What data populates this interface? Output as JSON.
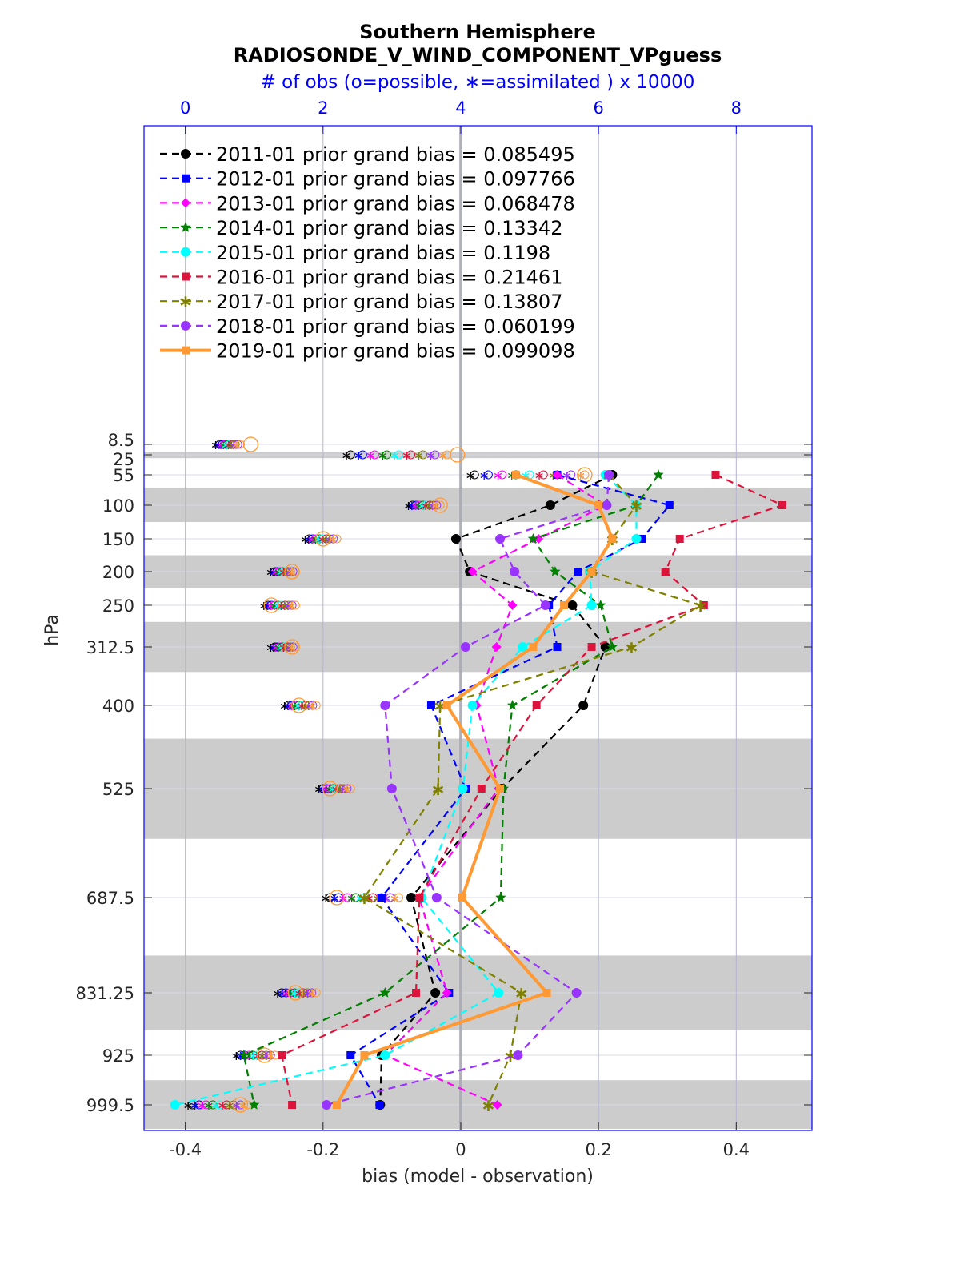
{
  "chart_data": {
    "type": "line",
    "title": "Southern Hemisphere",
    "subtitle": "RADIOSONDE_V_WIND_COMPONENT_VPguess",
    "top_axis_label": "# of obs (o=possible, ∗=assimilated ) x 10000",
    "xlabel": "bias (model - observation)",
    "ylabel": "hPa",
    "xlim": [
      -0.46,
      0.51
    ],
    "x_ticks": [
      "-0.4",
      "-0.2",
      "0",
      "0.2",
      "0.4"
    ],
    "x_tick_values": [
      -0.4,
      -0.2,
      0,
      0.2,
      0.4
    ],
    "top_xlim": [
      -0.6,
      9.1
    ],
    "top_ticks": [
      "0",
      "2",
      "4",
      "6",
      "8"
    ],
    "top_tick_values": [
      0,
      2,
      4,
      6,
      8
    ],
    "y_reversed": true,
    "levels": [
      8.5,
      25,
      55,
      100,
      150,
      200,
      250,
      312.5,
      400,
      525,
      687.5,
      831.25,
      925,
      999.5
    ],
    "level_labels": [
      "8.5",
      "25",
      "55",
      "100",
      "150",
      "200",
      "250",
      "312.5",
      "400",
      "525",
      "687.5",
      "831.25",
      "925",
      "999.5"
    ],
    "shaded_bands_hPa": [
      [
        20,
        30
      ],
      [
        75,
        125
      ],
      [
        175,
        225
      ],
      [
        275,
        350
      ],
      [
        450,
        600
      ],
      [
        775,
        887.5
      ],
      [
        962.5,
        1025
      ]
    ],
    "legend_location": "top-left",
    "series": [
      {
        "name": "2011-01 prior grand bias = 0.085495",
        "color": "#000000",
        "marker": "circle",
        "style": "dashed",
        "levels": [
          55,
          100,
          150,
          200,
          250,
          312.5,
          400,
          525,
          687.5,
          831.25,
          925,
          999.5
        ],
        "values": [
          0.22,
          0.13,
          -0.007,
          0.013,
          0.162,
          0.21,
          0.178,
          0.06,
          -0.072,
          -0.037,
          -0.115,
          -0.117
        ]
      },
      {
        "name": "2012-01 prior grand bias = 0.097766",
        "color": "#0000ff",
        "marker": "square",
        "style": "dashed",
        "levels": [
          55,
          100,
          150,
          200,
          250,
          312.5,
          400,
          525,
          687.5,
          831.25,
          925,
          999.5
        ],
        "values": [
          0.14,
          0.303,
          0.263,
          0.17,
          0.128,
          0.14,
          -0.043,
          0.007,
          -0.115,
          -0.017,
          -0.16,
          -0.118
        ]
      },
      {
        "name": "2013-01 prior grand bias = 0.068478",
        "color": "#ff00ff",
        "marker": "diamond",
        "style": "dashed",
        "levels": [
          55,
          100,
          150,
          200,
          250,
          312.5,
          400,
          525,
          687.5,
          831.25,
          925,
          999.5
        ],
        "values": [
          0.14,
          0.21,
          0.113,
          0.017,
          0.075,
          0.052,
          0.023,
          0.055,
          -0.06,
          -0.02,
          -0.11,
          0.053
        ]
      },
      {
        "name": "2014-01 prior grand bias = 0.13342",
        "color": "#008000",
        "marker": "star",
        "style": "dashed",
        "levels": [
          55,
          100,
          150,
          200,
          250,
          312.5,
          400,
          525,
          687.5,
          831.25,
          925,
          999.5
        ],
        "values": [
          0.287,
          0.255,
          0.105,
          0.137,
          0.203,
          0.22,
          0.075,
          0.062,
          0.058,
          -0.11,
          -0.315,
          -0.3
        ]
      },
      {
        "name": "2015-01 prior grand bias = 0.1198",
        "color": "#00ffff",
        "marker": "circle",
        "style": "dashed",
        "levels": [
          55,
          100,
          150,
          200,
          250,
          312.5,
          400,
          525,
          687.5,
          831.25,
          925,
          999.5
        ],
        "values": [
          0.21,
          0.255,
          0.255,
          0.187,
          0.19,
          0.09,
          0.017,
          0.003,
          -0.057,
          0.055,
          -0.11,
          -0.415
        ]
      },
      {
        "name": "2016-01 prior grand bias = 0.21461",
        "color": "#dc143c",
        "marker": "square",
        "style": "dashed",
        "levels": [
          55,
          100,
          150,
          200,
          250,
          312.5,
          400,
          525,
          687.5,
          831.25,
          925,
          999.5
        ],
        "values": [
          0.37,
          0.467,
          0.318,
          0.297,
          0.353,
          0.19,
          0.11,
          0.03,
          -0.06,
          -0.065,
          -0.26,
          -0.245
        ]
      },
      {
        "name": "2017-01 prior grand bias = 0.13807",
        "color": "#808000",
        "marker": "asterisk",
        "style": "dashed",
        "levels": [
          55,
          100,
          150,
          200,
          250,
          312.5,
          400,
          525,
          687.5,
          831.25,
          925,
          999.5
        ],
        "values": [
          0.215,
          0.255,
          0.22,
          0.19,
          0.348,
          0.248,
          -0.03,
          -0.033,
          -0.14,
          0.088,
          0.072,
          0.04
        ]
      },
      {
        "name": "2018-01 prior grand bias = 0.060199",
        "color": "#9933ff",
        "marker": "circle",
        "style": "dashed",
        "levels": [
          55,
          100,
          150,
          200,
          250,
          312.5,
          400,
          525,
          687.5,
          831.25,
          925,
          999.5
        ],
        "values": [
          0.215,
          0.212,
          0.057,
          0.078,
          0.123,
          0.007,
          -0.11,
          -0.1,
          -0.035,
          0.168,
          0.083,
          -0.195
        ]
      },
      {
        "name": "2019-01 prior grand bias = 0.099098",
        "color": "#ff9933",
        "marker": "square",
        "style": "solid",
        "levels": [
          55,
          100,
          150,
          200,
          250,
          312.5,
          400,
          525,
          687.5,
          831.25,
          925,
          999.5
        ],
        "values": [
          0.08,
          0.2,
          0.22,
          0.19,
          0.15,
          0.105,
          -0.02,
          0.057,
          0.002,
          0.125,
          -0.14,
          -0.18
        ]
      }
    ],
    "obs_counts_x10000": {
      "note": "hollow circles = possible, asterisks = assimilated",
      "levels": [
        8.5,
        25,
        55,
        100,
        150,
        200,
        250,
        312.5,
        400,
        525,
        687.5,
        831.25,
        925,
        999.5
      ],
      "spread": [
        [
          0.5,
          0.8
        ],
        [
          2.4,
          3.8
        ],
        [
          4.2,
          5.8
        ],
        [
          3.3,
          3.7
        ],
        [
          1.8,
          2.2
        ],
        [
          1.3,
          1.6
        ],
        [
          1.2,
          1.6
        ],
        [
          1.3,
          1.6
        ],
        [
          1.5,
          1.9
        ],
        [
          2.0,
          2.4
        ],
        [
          2.1,
          3.1
        ],
        [
          1.4,
          1.9
        ],
        [
          0.8,
          1.3
        ],
        [
          0.1,
          0.9
        ]
      ],
      "series_2019": [
        0.95,
        3.95,
        5.8,
        3.7,
        2.0,
        1.55,
        1.25,
        1.55,
        1.65,
        2.1,
        2.2,
        1.6,
        1.15,
        0.8
      ]
    }
  }
}
